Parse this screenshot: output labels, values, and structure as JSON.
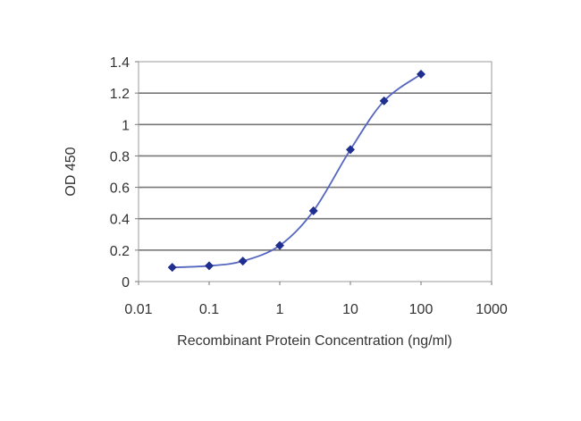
{
  "chart_data": {
    "type": "line",
    "title": "",
    "xlabel": "Recombinant Protein Concentration (ng/ml)",
    "ylabel": "OD 450",
    "xscale": "log",
    "xlim": [
      0.01,
      1000
    ],
    "ylim": [
      0,
      1.4
    ],
    "x_ticks": [
      "0.01",
      "0.1",
      "1",
      "10",
      "100",
      "1000"
    ],
    "y_ticks": [
      "0",
      "0.2",
      "0.4",
      "0.6",
      "0.8",
      "1",
      "1.2",
      "1.4"
    ],
    "grid": "horizontal",
    "legend": "none",
    "series": [
      {
        "x": [
          0.03,
          0.1,
          0.3,
          1,
          3,
          10,
          30,
          100
        ],
        "y": [
          0.09,
          0.1,
          0.13,
          0.23,
          0.45,
          0.84,
          1.15,
          1.32
        ],
        "color": "#1f2e8f",
        "line_color": "#5566c0",
        "marker": "diamond"
      }
    ]
  }
}
